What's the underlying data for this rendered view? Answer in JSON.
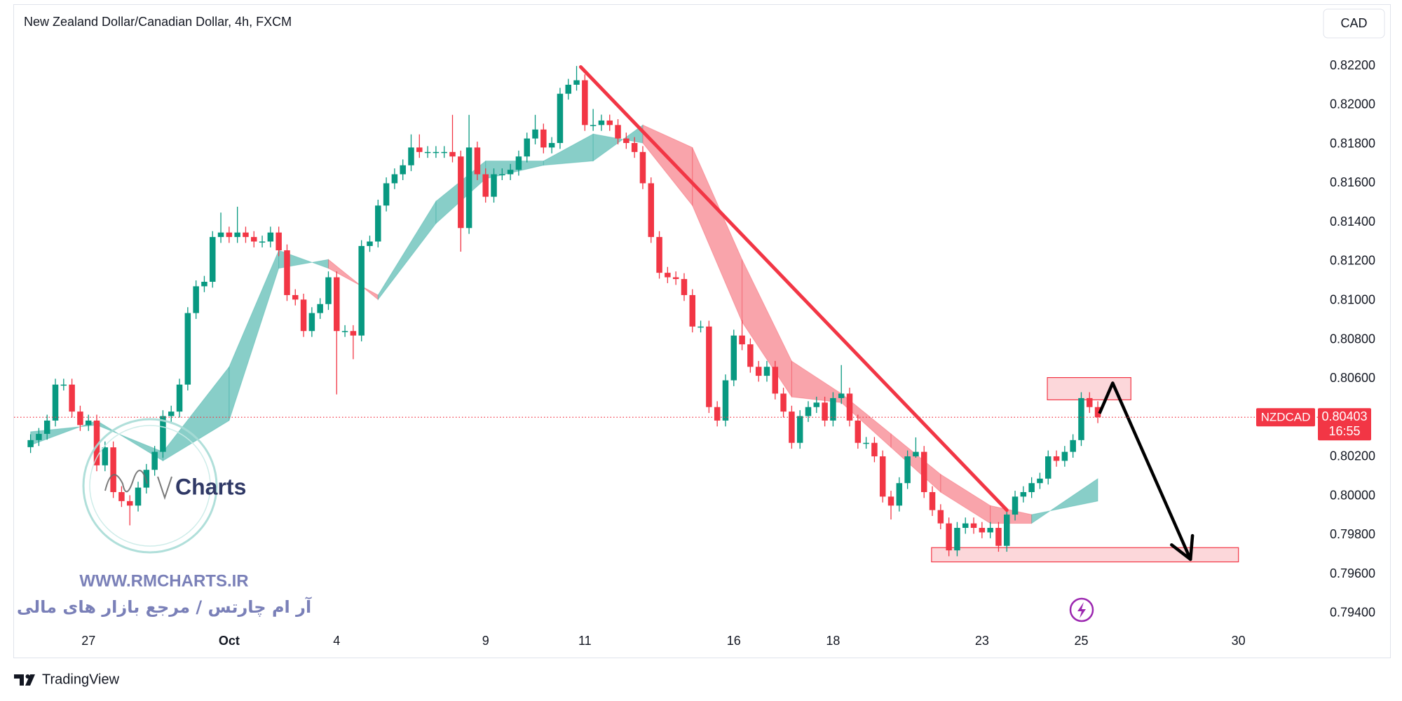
{
  "chart_data": {
    "type": "candlestick",
    "title": "New Zealand Dollar/Canadian Dollar, 4h, FXCM",
    "currency": "CAD",
    "symbol": "NZDCAD",
    "countdown": "16:55",
    "last_price": 0.80403,
    "up_color": "#089981",
    "down_color": "#f23645",
    "grid": false,
    "xlim": [
      -2,
      155.6
    ],
    "ylim": [
      0.7931,
      0.82516
    ],
    "xticks": [
      {
        "value": 7,
        "label": "27"
      },
      {
        "value": 24,
        "label": "Oct"
      },
      {
        "value": 37,
        "label": "4"
      },
      {
        "value": 55,
        "label": "9"
      },
      {
        "value": 67,
        "label": "11"
      },
      {
        "value": 85,
        "label": "16"
      },
      {
        "value": 97,
        "label": "18"
      },
      {
        "value": 115,
        "label": "23"
      },
      {
        "value": 127,
        "label": "25"
      },
      {
        "value": 146,
        "label": "30"
      }
    ],
    "yticks": [
      {
        "value": 0.822,
        "label": "0.82200"
      },
      {
        "value": 0.82,
        "label": "0.82000"
      },
      {
        "value": 0.818,
        "label": "0.81800"
      },
      {
        "value": 0.816,
        "label": "0.81600"
      },
      {
        "value": 0.814,
        "label": "0.81400"
      },
      {
        "value": 0.812,
        "label": "0.81200"
      },
      {
        "value": 0.81,
        "label": "0.81000"
      },
      {
        "value": 0.808,
        "label": "0.80800"
      },
      {
        "value": 0.806,
        "label": "0.80600"
      },
      {
        "value": 0.802,
        "label": "0.80200"
      },
      {
        "value": 0.8,
        "label": "0.80000"
      },
      {
        "value": 0.798,
        "label": "0.79800"
      },
      {
        "value": 0.796,
        "label": "0.79600"
      },
      {
        "value": 0.794,
        "label": "0.79400"
      }
    ],
    "open": [
      0.8025,
      0.80286,
      0.80318,
      0.80386,
      0.8057,
      0.8057,
      0.80432,
      0.80363,
      0.80386,
      0.80157,
      0.80249,
      0.8002,
      0.79974,
      0.79951,
      0.80043,
      0.80134,
      0.80226,
      0.80409,
      0.80432,
      0.8057,
      0.80936,
      0.81073,
      0.81096,
      0.81325,
      0.81348,
      0.81325,
      0.81348,
      0.81325,
      0.81302,
      0.81302,
      0.81348,
      0.81257,
      0.81028,
      0.81005,
      0.80844,
      0.80936,
      0.80982,
      0.81119,
      0.80844,
      0.80844,
      0.80821,
      0.81279,
      0.81302,
      0.81486,
      0.816,
      0.81646,
      0.81692,
      0.81783,
      0.8176,
      0.8176,
      0.8176,
      0.8176,
      0.81737,
      0.81371,
      0.81783,
      0.81646,
      0.81531,
      0.81646,
      0.81646,
      0.81669,
      0.81737,
      0.81829,
      0.81875,
      0.81783,
      0.81806,
      0.82058,
      0.82104,
      0.82127,
      0.81898,
      0.81898,
      0.81921,
      0.81898,
      0.81829,
      0.81806,
      0.8176,
      0.816,
      0.81325,
      0.81142,
      0.81119,
      0.8111,
      0.81028,
      0.80867,
      0.80867,
      0.80455,
      0.80386,
      0.80592,
      0.80821,
      0.80776,
      0.80661,
      0.80615,
      0.80661,
      0.80524,
      0.80432,
      0.80272,
      0.80409,
      0.80455,
      0.80478,
      0.80386,
      0.80501,
      0.80524,
      0.80386,
      0.80272,
      0.80272,
      0.80203,
      0.79997,
      0.79951,
      0.80066,
      0.80203,
      0.80226,
      0.8002,
      0.79928,
      0.7986,
      0.79722,
      0.79837,
      0.7986,
      0.79837,
      0.79814,
      0.79837,
      0.79745,
      0.79905,
      0.79997,
      0.8002,
      0.80066,
      0.80089,
      0.80203,
      0.8018,
      0.80226,
      0.80286,
      0.80501,
      0.80455
    ],
    "high": [
      0.80316,
      0.80348,
      0.80416,
      0.806,
      0.806,
      0.806,
      0.80462,
      0.80416,
      0.80416,
      0.80279,
      0.80279,
      0.8005,
      0.80004,
      0.80073,
      0.80164,
      0.80256,
      0.80439,
      0.80462,
      0.806,
      0.80966,
      0.81103,
      0.81126,
      0.81355,
      0.8145,
      0.81378,
      0.8148,
      0.81378,
      0.81355,
      0.81332,
      0.81378,
      0.81378,
      0.81287,
      0.81058,
      0.81035,
      0.80966,
      0.81012,
      0.81149,
      0.81149,
      0.80874,
      0.80874,
      0.81309,
      0.81332,
      0.81516,
      0.8163,
      0.81676,
      0.81722,
      0.8185,
      0.8185,
      0.8179,
      0.8179,
      0.8179,
      0.8195,
      0.81767,
      0.8195,
      0.81813,
      0.81676,
      0.81676,
      0.81676,
      0.81699,
      0.81767,
      0.81859,
      0.8195,
      0.81905,
      0.81836,
      0.82088,
      0.82134,
      0.822,
      0.82157,
      0.8198,
      0.81951,
      0.81951,
      0.81928,
      0.81859,
      0.81836,
      0.8179,
      0.8163,
      0.81355,
      0.81172,
      0.81149,
      0.8114,
      0.81058,
      0.80897,
      0.80897,
      0.80485,
      0.80622,
      0.80851,
      0.809,
      0.80806,
      0.80691,
      0.80691,
      0.80691,
      0.80554,
      0.80462,
      0.80439,
      0.80485,
      0.80508,
      0.80508,
      0.80531,
      0.8067,
      0.80554,
      0.80416,
      0.80302,
      0.80302,
      0.80233,
      0.80027,
      0.80096,
      0.80233,
      0.803,
      0.80256,
      0.8005,
      0.79958,
      0.7989,
      0.79867,
      0.7989,
      0.7989,
      0.79867,
      0.79867,
      0.79867,
      0.79935,
      0.80027,
      0.8005,
      0.80096,
      0.80119,
      0.80233,
      0.80233,
      0.80256,
      0.80316,
      0.80531,
      0.80531,
      0.80485
    ],
    "low": [
      0.8022,
      0.80256,
      0.80288,
      0.80356,
      0.8054,
      0.80402,
      0.80333,
      0.80333,
      0.80127,
      0.80127,
      0.7999,
      0.79944,
      0.7985,
      0.79921,
      0.80013,
      0.80104,
      0.80196,
      0.80379,
      0.80402,
      0.8054,
      0.80906,
      0.81043,
      0.81066,
      0.81295,
      0.81295,
      0.81295,
      0.81295,
      0.81272,
      0.81272,
      0.81272,
      0.81227,
      0.80998,
      0.80975,
      0.80814,
      0.80814,
      0.80906,
      0.80952,
      0.8052,
      0.80814,
      0.807,
      0.80791,
      0.81249,
      0.81272,
      0.81456,
      0.8157,
      0.81616,
      0.81662,
      0.8173,
      0.8173,
      0.8173,
      0.8173,
      0.81707,
      0.8125,
      0.81341,
      0.81616,
      0.81501,
      0.81501,
      0.81616,
      0.81616,
      0.81639,
      0.81707,
      0.81799,
      0.81753,
      0.81753,
      0.81776,
      0.82028,
      0.82074,
      0.81868,
      0.81868,
      0.81868,
      0.81868,
      0.81799,
      0.81776,
      0.8173,
      0.8157,
      0.81295,
      0.81112,
      0.81089,
      0.8108,
      0.80998,
      0.80837,
      0.80837,
      0.80425,
      0.80356,
      0.80356,
      0.80562,
      0.80746,
      0.80631,
      0.80585,
      0.80585,
      0.80494,
      0.80402,
      0.80242,
      0.80242,
      0.80379,
      0.80425,
      0.80356,
      0.80356,
      0.80471,
      0.80356,
      0.80242,
      0.80242,
      0.80173,
      0.79967,
      0.7988,
      0.79921,
      0.80036,
      0.80196,
      0.7999,
      0.79898,
      0.7983,
      0.79692,
      0.79692,
      0.79807,
      0.79807,
      0.79784,
      0.79784,
      0.79715,
      0.79715,
      0.79875,
      0.79967,
      0.7999,
      0.80036,
      0.80059,
      0.8015,
      0.8015,
      0.80196,
      0.80256,
      0.80425,
      0.80373
    ],
    "close": [
      0.80286,
      0.80318,
      0.80386,
      0.8057,
      0.8057,
      0.80432,
      0.80363,
      0.80386,
      0.80157,
      0.80249,
      0.8002,
      0.79974,
      0.79951,
      0.80043,
      0.80134,
      0.80226,
      0.80409,
      0.80432,
      0.8057,
      0.80936,
      0.81073,
      0.81096,
      0.81325,
      0.81348,
      0.81325,
      0.81348,
      0.81325,
      0.81302,
      0.81302,
      0.81348,
      0.81257,
      0.81028,
      0.81005,
      0.80844,
      0.80936,
      0.80982,
      0.81119,
      0.80844,
      0.80844,
      0.80821,
      0.81279,
      0.81302,
      0.81486,
      0.816,
      0.81646,
      0.81692,
      0.81783,
      0.8176,
      0.8176,
      0.8176,
      0.8176,
      0.81737,
      0.81371,
      0.81783,
      0.81646,
      0.81531,
      0.81646,
      0.81646,
      0.81669,
      0.81737,
      0.81829,
      0.81875,
      0.81783,
      0.81806,
      0.82058,
      0.82104,
      0.82127,
      0.81898,
      0.81898,
      0.81921,
      0.81898,
      0.81829,
      0.81806,
      0.8176,
      0.816,
      0.81325,
      0.81142,
      0.81119,
      0.8111,
      0.81028,
      0.80867,
      0.80867,
      0.80455,
      0.80386,
      0.80592,
      0.80821,
      0.80776,
      0.80661,
      0.80615,
      0.80661,
      0.80524,
      0.80432,
      0.80272,
      0.80409,
      0.80455,
      0.80478,
      0.80386,
      0.80501,
      0.80524,
      0.80386,
      0.80272,
      0.80272,
      0.80203,
      0.79997,
      0.79951,
      0.80066,
      0.80203,
      0.80226,
      0.8002,
      0.79928,
      0.7986,
      0.79722,
      0.79837,
      0.7986,
      0.79837,
      0.79814,
      0.79837,
      0.79745,
      0.79905,
      0.79997,
      0.8002,
      0.80066,
      0.80089,
      0.80203,
      0.8018,
      0.80226,
      0.80286,
      0.80501,
      0.80455,
      0.80403
    ],
    "ribbon": {
      "up_color": "#26a69a",
      "down_color": "#f23645",
      "x": [
        0,
        8,
        16,
        24,
        30,
        36,
        42,
        49,
        55,
        62,
        68,
        74,
        80,
        86,
        92,
        98,
        104,
        110,
        116,
        121,
        129
      ],
      "fast": [
        0.80329,
        0.80363,
        0.80226,
        0.80661,
        0.81257,
        0.81165,
        0.81028,
        0.81508,
        0.81714,
        0.81714,
        0.81852,
        0.81806,
        0.81486,
        0.8089,
        0.80507,
        0.80478,
        0.80249,
        0.8002,
        0.7986,
        0.7986,
        0.80089
      ],
      "slow": [
        0.8026,
        0.80386,
        0.8018,
        0.80386,
        0.81165,
        0.8121,
        0.81005,
        0.81394,
        0.81623,
        0.81692,
        0.81714,
        0.81898,
        0.81783,
        0.8121,
        0.8069,
        0.80524,
        0.80318,
        0.80111,
        0.79951,
        0.79905,
        0.79974
      ]
    },
    "annotations": {
      "trend_line": {
        "x": [
          66.5,
          118
        ],
        "y": [
          0.82195,
          0.79928
        ],
        "color": "#f23645"
      },
      "arrow": {
        "x": [
          129.2,
          130.8,
          140.2
        ],
        "y": [
          0.80422,
          0.80578,
          0.79676
        ],
        "color": "#000000"
      },
      "zones": [
        {
          "x": [
            122.9,
            133
          ],
          "y": [
            0.80492,
            0.80606
          ],
          "color": "#f23645"
        },
        {
          "x": [
            108.9,
            146
          ],
          "y": [
            0.79663,
            0.79736
          ],
          "color": "#f23645"
        }
      ]
    },
    "watermark": {
      "brand": "Charts",
      "url": "WWW.RMCHARTS.IR",
      "tagline": "آر ام چارتس / مرجع بازار های مالی"
    },
    "footer": "TradingView"
  }
}
